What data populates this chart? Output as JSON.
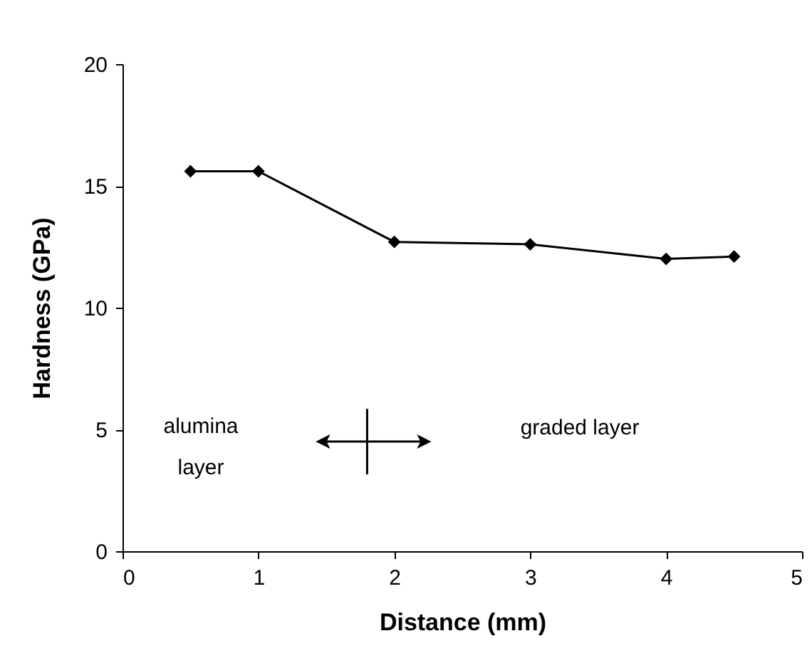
{
  "chart_data": {
    "type": "line",
    "xlabel": "Distance (mm)",
    "ylabel": "Hardness (GPa)",
    "x": [
      0.5,
      1,
      2,
      3,
      4,
      4.5
    ],
    "series": [
      {
        "color": "#000000",
        "values": [
          15.6,
          15.6,
          12.7,
          12.6,
          12.0,
          12.1
        ]
      }
    ],
    "xlim": [
      0,
      5
    ],
    "xticks": [
      0,
      1,
      2,
      3,
      4,
      5
    ],
    "ylim": [
      0,
      20
    ],
    "yticks": [
      0,
      5,
      10,
      15,
      20
    ],
    "grid": false,
    "legend": false,
    "marker": "diamond",
    "line_style": "solid",
    "annotations": [
      "alumina\nlayer",
      "graded layer"
    ]
  }
}
